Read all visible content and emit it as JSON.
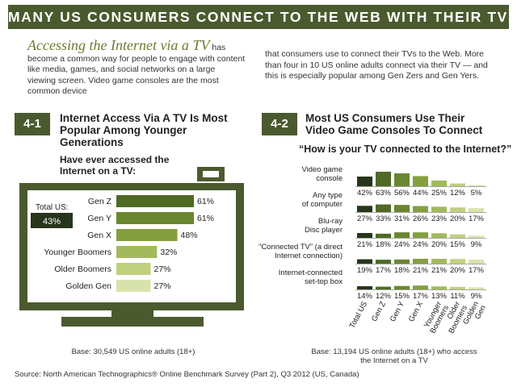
{
  "banner_title": "MANY US CONSUMERS CONNECT TO THE WEB WITH THEIR TVS",
  "intro": {
    "lead": "Accessing the Internet via a TV",
    "left_rest": " has become a common way for people to engage with content like media, games, and social networks on a large viewing screen. Video game consoles are the most common device",
    "right": "that consumers use to connect their TVs to the Web. More than four in 10 US online adults connect via their TV — and this is especially popular among Gen Zers and Gen Yers."
  },
  "left_panel": {
    "badge": "4-1",
    "title_line1": "Internet Access Via A TV Is Most",
    "title_line2": "Popular Among Younger",
    "title_line3": "Generations",
    "subtitle_line1": "Have ever accessed the",
    "subtitle_line2": "Internet on a TV:",
    "total_label": "Total US:",
    "total_value": "43%",
    "base": "Base: 30,549 US online adults (18+)"
  },
  "right_panel": {
    "badge": "4-2",
    "title_line1": "Most US Consumers Use Their",
    "title_line2": "Video Game Consoles To Connect",
    "question": "“How is your TV connected to the Internet?”",
    "base_line1": "Base: 13,194 US online adults (18+) who access",
    "base_line2": "the Internet on a TV"
  },
  "source": "Source: North American Technographics® Online Benchmark Survey (Part 2), Q3 2012 (US, Canada)",
  "colors": {
    "dark_olive": "#4b5a2e",
    "bar_shades": [
      "#27351b",
      "#4e6a24",
      "#6a8630",
      "#84a03e",
      "#a2ba5c",
      "#bfd07f",
      "#d8e3ac"
    ]
  },
  "chart_data": [
    {
      "type": "bar",
      "orientation": "horizontal",
      "categories": [
        "Gen Z",
        "Gen Y",
        "Gen X",
        "Younger Boomers",
        "Older Boomers",
        "Golden Gen"
      ],
      "values": [
        61,
        61,
        48,
        32,
        27,
        27
      ],
      "value_labels": [
        "61%",
        "61%",
        "48%",
        "32%",
        "27%",
        "27%"
      ],
      "unit": "%",
      "title": "Internet Access Via A TV Is Most Popular Among Younger Generations",
      "subtitle": "Have ever accessed the Internet on a TV:",
      "annotation": "Total US: 43%"
    },
    {
      "type": "bar",
      "title": "Most US Consumers Use Their Video Game Consoles To Connect",
      "subtitle": "“How is your TV connected to the Internet?”",
      "groups": [
        {
          "label_lines": [
            "Video game",
            "console"
          ],
          "label": "Video game console"
        },
        {
          "label_lines": [
            "Any type",
            "of computer"
          ],
          "label": "Any type of computer"
        },
        {
          "label_lines": [
            "Blu-ray",
            "Disc player"
          ],
          "label": "Blu-ray Disc player"
        },
        {
          "label_lines": [
            "“Connected TV” (a direct",
            "Internet connection)"
          ],
          "label": "“Connected TV” (a direct Internet connection)"
        },
        {
          "label_lines": [
            "Internet-connected",
            "set-top box"
          ],
          "label": "Internet-connected set-top box"
        }
      ],
      "series": [
        {
          "name": "Total US",
          "values": [
            42,
            27,
            21,
            19,
            14
          ]
        },
        {
          "name": "Gen Z",
          "values": [
            63,
            33,
            18,
            17,
            12
          ]
        },
        {
          "name": "Gen Y",
          "values": [
            56,
            31,
            24,
            18,
            15
          ]
        },
        {
          "name": "Gen X",
          "values": [
            44,
            26,
            24,
            21,
            17
          ]
        },
        {
          "name": "Younger Boomers",
          "values": [
            25,
            23,
            20,
            21,
            13
          ]
        },
        {
          "name": "Older Boomers",
          "values": [
            12,
            20,
            15,
            20,
            11
          ]
        },
        {
          "name": "Golden Gen",
          "values": [
            5,
            17,
            9,
            17,
            9
          ]
        }
      ],
      "series_label_lines": [
        [
          "Total US"
        ],
        [
          "Gen Z"
        ],
        [
          "Gen Y"
        ],
        [
          "Gen X"
        ],
        [
          "Younger",
          "Boomers"
        ],
        [
          "Older",
          "Boomers"
        ],
        [
          "Golden",
          "Gen"
        ]
      ],
      "unit": "%"
    }
  ]
}
